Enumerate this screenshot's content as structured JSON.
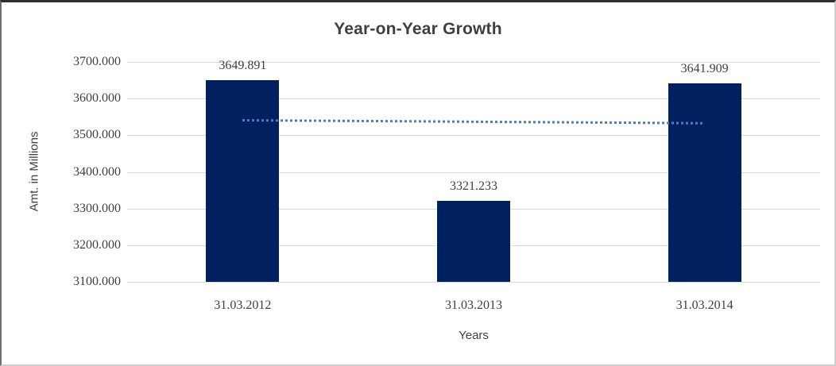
{
  "colors": {
    "bar_fill": "#002060",
    "trendline": "#4a7ebb",
    "gridline": "#d9d9d9",
    "text": "#404040",
    "title_text": "#3f3f3f"
  },
  "chart_data": {
    "type": "bar",
    "title": "Year-on-Year Growth",
    "xlabel": "Years",
    "ylabel": "Amt. in Millions",
    "categories": [
      "31.03.2012",
      "31.03.2013",
      "31.03.2014"
    ],
    "values": [
      3649.891,
      3321.233,
      3641.909
    ],
    "data_labels": [
      "3649.891",
      "3321.233",
      "3641.909"
    ],
    "ylim": [
      3100,
      3700
    ],
    "ytick_labels": [
      "3700.000",
      "3600.000",
      "3500.000",
      "3400.000",
      "3300.000",
      "3200.000",
      "3100.000"
    ],
    "grid": true,
    "legend": "none",
    "trendline": {
      "style": "dotted",
      "y_start": 3541.7,
      "y_end": 3533.7,
      "spans_categories": [
        0,
        2
      ]
    }
  }
}
